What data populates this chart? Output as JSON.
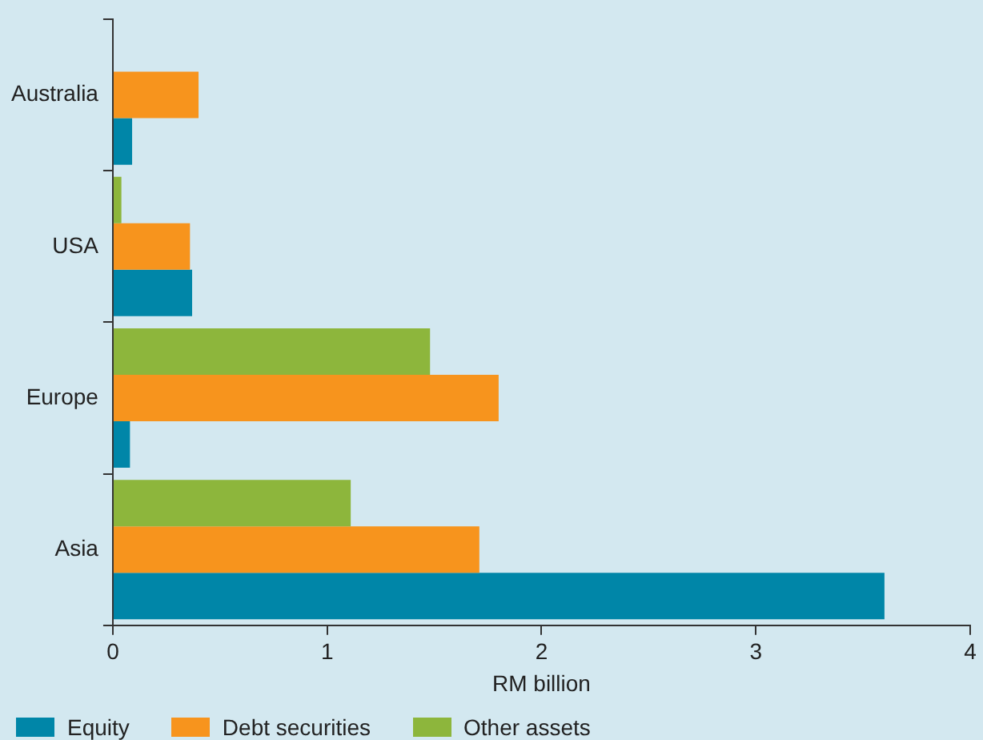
{
  "chart_data": {
    "type": "bar",
    "orientation": "horizontal",
    "xlabel": "RM billion",
    "categories": [
      "Australia",
      "USA",
      "Europe",
      "Asia"
    ],
    "series": [
      {
        "name": "Equity",
        "color": "#0086a8",
        "values": [
          0.09,
          0.37,
          0.08,
          3.6
        ]
      },
      {
        "name": "Debt securities",
        "color": "#f7941d",
        "values": [
          0.4,
          0.36,
          1.8,
          1.71
        ]
      },
      {
        "name": "Other assets",
        "color": "#8db63c",
        "values": [
          null,
          0.04,
          1.48,
          1.11
        ]
      }
    ],
    "xlim": [
      0,
      4
    ],
    "xticks": [
      0,
      1,
      2,
      3,
      4
    ],
    "grid": false,
    "legend": "bottom left"
  }
}
